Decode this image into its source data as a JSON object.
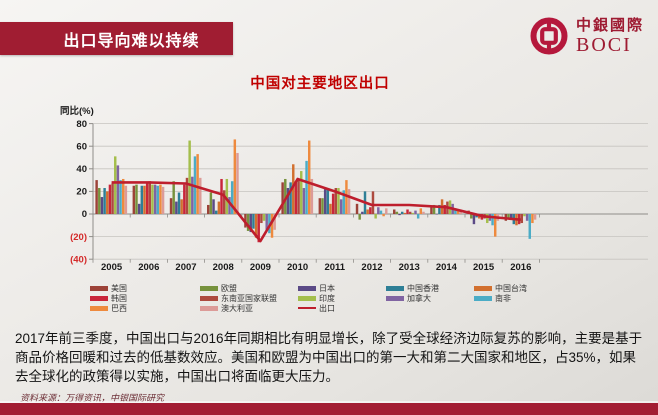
{
  "slide": {
    "banner_title": "出口导向难以持续",
    "logo": {
      "cn": "中銀國際",
      "en": "BOCI"
    },
    "body_text": "2017年前三季度，中国出口与2016年同期相比有明显增长，除了受全球经济边际复苏的影响，主要是基于商品价格回暖和过去的低基数效应。美国和欧盟为中国出口的第一大和第二大国家和地区，占35%，如果去全球化的政策得以实施，中国出口将面临更大压力。",
    "source_note": "资料来源：万得资讯，中银国际研究",
    "colors": {
      "brand_red": "#a01d32",
      "title_red": "#c00000",
      "negative_tick_red": "#d42a2a"
    }
  },
  "chart_data": {
    "type": "bar",
    "title": "中国对主要地区出口",
    "ylabel": "同比(%)",
    "ylim": [
      -40,
      80
    ],
    "ytick_step": 20,
    "negative_tick_format": "parentheses, red",
    "grid": "horizontal",
    "legend_position": "bottom",
    "categories": [
      "2005",
      "2006",
      "2007",
      "2008",
      "2009",
      "2010",
      "2011",
      "2012",
      "2013",
      "2014",
      "2015",
      "2016"
    ],
    "series": [
      {
        "name": "美国",
        "color": "#9c4238",
        "values": [
          30,
          25,
          14,
          8,
          -12,
          28,
          14,
          9,
          4,
          6,
          3,
          -6
        ]
      },
      {
        "name": "欧盟",
        "color": "#77923d",
        "values": [
          23,
          26,
          29,
          19,
          -15,
          31,
          14,
          -5,
          2,
          8,
          -4,
          -4
        ]
      },
      {
        "name": "日本",
        "color": "#5b4a86",
        "values": [
          15,
          9,
          11,
          13,
          -16,
          23,
          22,
          2,
          -1,
          0,
          -9,
          -4
        ]
      },
      {
        "name": "中国香港",
        "color": "#2e7f96",
        "values": [
          23,
          25,
          19,
          3,
          -13,
          28,
          22,
          20,
          2,
          8,
          -3,
          -9
        ]
      },
      {
        "name": "中国台湾",
        "color": "#d2702f",
        "values": [
          20,
          25,
          13,
          11,
          -21,
          44,
          9,
          4,
          1,
          13,
          -4,
          -10
        ]
      },
      {
        "name": "韩国",
        "color": "#c9253a",
        "values": [
          26,
          27,
          26,
          31,
          -25,
          28,
          18,
          6,
          4,
          8,
          -5,
          -9
        ]
      },
      {
        "name": "东南亚国家联盟",
        "color": "#ad4a3f",
        "values": [
          27,
          29,
          32,
          21,
          -8,
          30,
          23,
          20,
          2,
          11,
          -4,
          -8
        ]
      },
      {
        "name": "印度",
        "color": "#a4be4c",
        "values": [
          51,
          26,
          65,
          31,
          -6,
          38,
          23,
          -4,
          1,
          12,
          -8,
          -2
        ]
      },
      {
        "name": "加拿大",
        "color": "#8064a2",
        "values": [
          43,
          26,
          33,
          15,
          -14,
          23,
          13,
          6,
          3,
          9,
          -6,
          -6
        ]
      },
      {
        "name": "南非",
        "color": "#4bacc6",
        "values": [
          30,
          25,
          51,
          29,
          -17,
          47,
          21,
          3,
          -4,
          5,
          -10,
          -22
        ]
      },
      {
        "name": "巴西",
        "color": "#ee8a3e",
        "values": [
          31,
          26,
          53,
          66,
          -21,
          65,
          30,
          -2,
          5,
          3,
          -20,
          -8
        ]
      },
      {
        "name": "澳大利亚",
        "color": "#dc9b98",
        "values": [
          25,
          24,
          32,
          54,
          -14,
          31,
          22,
          5,
          2,
          4,
          -6,
          -5
        ]
      }
    ],
    "line_series": {
      "name": "出口",
      "color": "#be1e2d",
      "values": [
        28,
        28,
        27,
        17,
        -24,
        31,
        20,
        8,
        8,
        6,
        -2,
        -5
      ]
    },
    "legend_columns": [
      [
        "美国",
        "韩国",
        "巴西"
      ],
      [
        "欧盟",
        "东南亚国家联盟",
        "澳大利亚"
      ],
      [
        "日本",
        "印度",
        "出口"
      ],
      [
        "中国香港",
        "加拿大"
      ],
      [
        "中国台湾",
        "南非"
      ]
    ]
  }
}
